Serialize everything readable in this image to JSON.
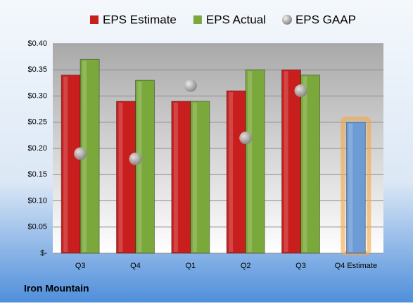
{
  "chart_data": {
    "type": "bar",
    "footer": "Iron Mountain",
    "categories": [
      "Q3",
      "Q4",
      "Q1",
      "Q2",
      "Q3",
      "Q4 Estimate"
    ],
    "series": [
      {
        "name": "EPS Estimate",
        "color": "#c81e1e",
        "colors": [
          "#c81e1e",
          "#c81e1e",
          "#c81e1e",
          "#c81e1e",
          "#c81e1e",
          "#6c9bd6"
        ],
        "values": [
          0.34,
          0.29,
          0.29,
          0.31,
          0.35,
          0.25
        ]
      },
      {
        "name": "EPS Actual",
        "color": "#7aa83a",
        "values": [
          0.37,
          0.33,
          0.29,
          0.35,
          0.34,
          null
        ]
      },
      {
        "name": "EPS GAAP",
        "color": "#a8a8a8",
        "marker": "circle",
        "values": [
          0.19,
          0.18,
          0.32,
          0.22,
          0.31,
          null
        ]
      }
    ],
    "ylim": [
      0,
      0.4
    ],
    "yticks": [
      {
        "value": 0,
        "label": "$-"
      },
      {
        "value": 0.05,
        "label": "$0.05"
      },
      {
        "value": 0.1,
        "label": "$0.10"
      },
      {
        "value": 0.15,
        "label": "$0.15"
      },
      {
        "value": 0.2,
        "label": "$0.20"
      },
      {
        "value": 0.25,
        "label": "$0.25"
      },
      {
        "value": 0.3,
        "label": "$0.30"
      },
      {
        "value": 0.35,
        "label": "$0.35"
      },
      {
        "value": 0.4,
        "label": "$0.40"
      }
    ],
    "grid": true,
    "legend": "top"
  }
}
